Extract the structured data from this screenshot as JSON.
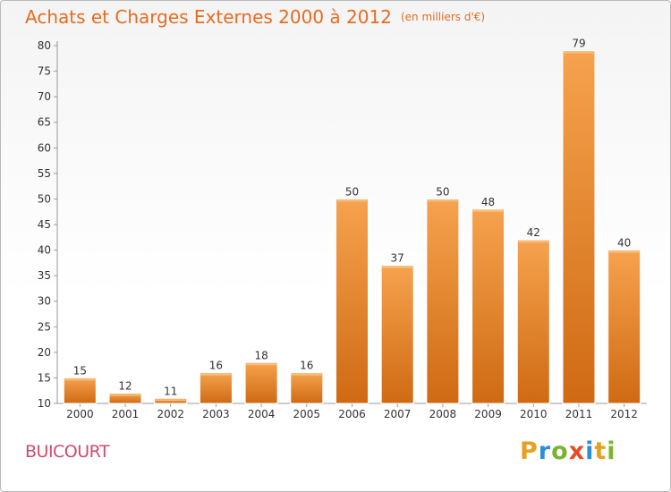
{
  "header": {
    "title": "Achats et Charges Externes 2000 à 2012",
    "subtitle": "(en milliers d'€)"
  },
  "commune": "BUICOURT",
  "logo": {
    "letters": [
      "P",
      "r",
      "o",
      "x",
      "i",
      "t",
      "i"
    ],
    "colors": [
      "#e8a020",
      "#2f8fd6",
      "#7ab32e",
      "#e84b2a",
      "#2f8fd6",
      "#e8a020",
      "#7ab32e"
    ]
  },
  "chart_data": {
    "type": "bar",
    "title": "Achats et Charges Externes 2000 à 2012",
    "subtitle": "(en milliers d'€)",
    "categories": [
      "2000",
      "2001",
      "2002",
      "2003",
      "2004",
      "2005",
      "2006",
      "2007",
      "2008",
      "2009",
      "2010",
      "2011",
      "2012"
    ],
    "values": [
      15,
      12,
      11,
      16,
      18,
      16,
      50,
      37,
      50,
      48,
      42,
      79,
      40
    ],
    "ylim": [
      10,
      80
    ],
    "yticks": [
      10,
      15,
      20,
      25,
      30,
      35,
      40,
      45,
      50,
      55,
      60,
      65,
      70,
      75,
      80
    ],
    "grid": false,
    "bar_color_top": "#f6a24e",
    "bar_color_bottom": "#cf6a13"
  }
}
